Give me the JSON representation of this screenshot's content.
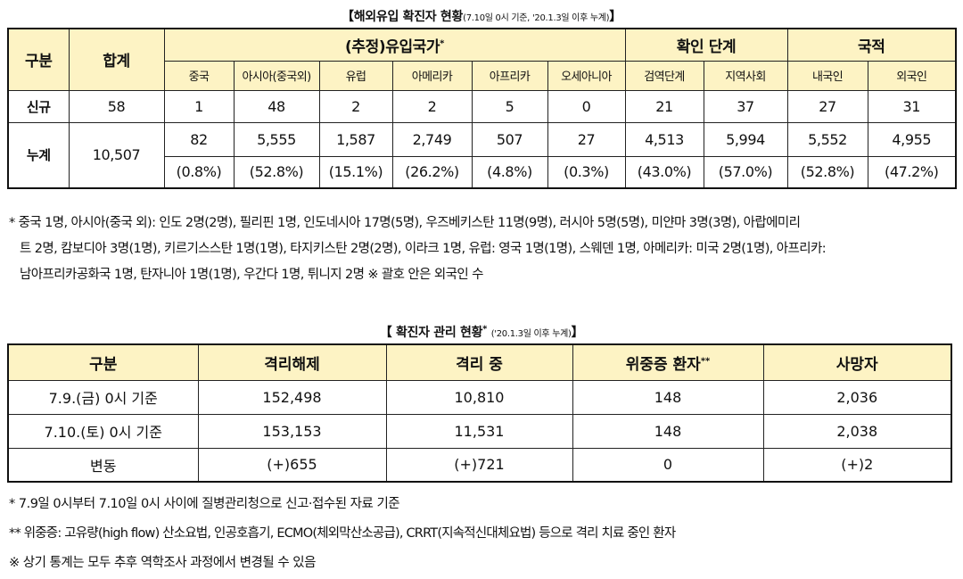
{
  "table1": {
    "title": "【해외유입 확진자 현황",
    "title_note": "(7.10일 0시 기준, '20.1.3일 이후 누계)",
    "title_close": "】",
    "col_category": "구분",
    "col_total": "합계",
    "group_country": "(추정)유입국가",
    "group_country_mark": "*",
    "group_stage": "확인 단계",
    "group_nationality": "국적",
    "sub_headers": [
      "중국",
      "아시아(중국외)",
      "유럽",
      "아메리카",
      "아프리카",
      "오세아니아",
      "검역단계",
      "지역사회",
      "내국인",
      "외국인"
    ],
    "row_new": {
      "label": "신규",
      "total": "58",
      "values": [
        "1",
        "48",
        "2",
        "2",
        "5",
        "0",
        "21",
        "37",
        "27",
        "31"
      ]
    },
    "row_cum": {
      "label": "누계",
      "total": "10,507",
      "values": [
        "82",
        "5,555",
        "1,587",
        "2,749",
        "507",
        "27",
        "4,513",
        "5,994",
        "5,552",
        "4,955"
      ],
      "pcts": [
        "(0.8%)",
        "(52.8%)",
        "(15.1%)",
        "(26.2%)",
        "(4.8%)",
        "(0.3%)",
        "(43.0%)",
        "(57.0%)",
        "(52.8%)",
        "(47.2%)"
      ]
    }
  },
  "footnote1": [
    "* 중국 1명, 아시아(중국 외): 인도 2명(2명), 필리핀 1명, 인도네시아 17명(5명), 우즈베키스탄 11명(9명), 러시아 5명(5명), 미얀마 3명(3명), 아랍에미리",
    "트 2명, 캄보디아 3명(1명), 키르기스스탄 1명(1명), 타지키스탄 2명(2명), 이라크 1명, 유럽: 영국 1명(1명), 스웨덴 1명, 아메리카: 미국 2명(1명), 아프리카:",
    "남아프리카공화국 1명, 탄자니아 1명(1명), 우간다 1명, 튀니지 2명 ※ 괄호 안은 외국인 수"
  ],
  "table2": {
    "title": "【 확진자 관리 현황",
    "title_mark": "*",
    "title_note": "('20.1.3일 이후 누계)",
    "title_close": "】",
    "headers": [
      "구분",
      "격리해제",
      "격리 중",
      "위중증 환자",
      "사망자"
    ],
    "critical_mark": "**",
    "rows": [
      [
        "7.9.(금) 0시 기준",
        "152,498",
        "10,810",
        "148",
        "2,036"
      ],
      [
        "7.10.(토) 0시 기준",
        "153,153",
        "11,531",
        "148",
        "2,038"
      ],
      [
        "변동",
        "(+)655",
        "(+)721",
        "0",
        "(+)2"
      ]
    ]
  },
  "notes2": [
    "* 7.9일 0시부터 7.10일 0시 사이에 질병관리청으로 신고·접수된 자료 기준",
    "** 위중증: 고유량(high flow) 산소요법, 인공호흡기, ECMO(체외막산소공급), CRRT(지속적신대체요법) 등으로 격리 치료 중인 환자",
    "※ 상기 통계는 모두 추후 역학조사 과정에서 변경될 수 있음"
  ]
}
